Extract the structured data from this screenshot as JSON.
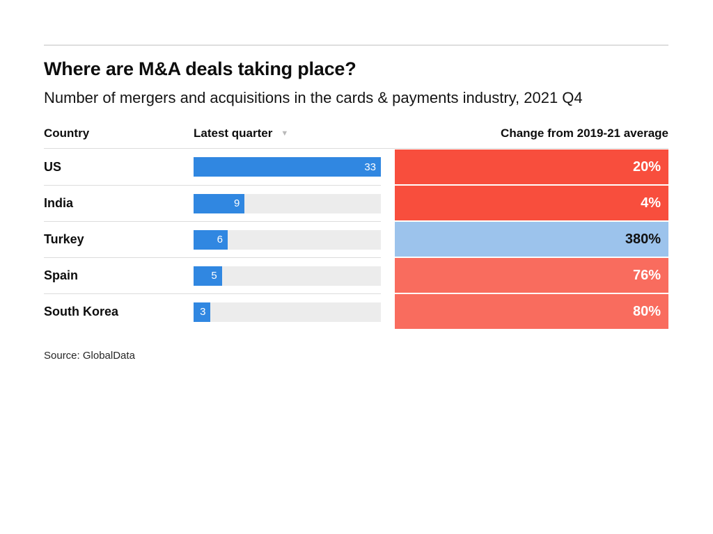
{
  "header": {
    "title": "Where are M&A deals taking place?",
    "subtitle": "Number of mergers and acquisitions in the cards & payments industry, 2021 Q4"
  },
  "table": {
    "columns": {
      "country": "Country",
      "latest_quarter": "Latest quarter",
      "change": "Change from 2019-21 average"
    },
    "sort_icon": "▼",
    "rows": [
      {
        "country": "US",
        "latest_quarter": 33,
        "change": "20%",
        "change_bg": "#f84e3d",
        "change_text": "#ffffff"
      },
      {
        "country": "India",
        "latest_quarter": 9,
        "change": "4%",
        "change_bg": "#f84e3d",
        "change_text": "#ffffff"
      },
      {
        "country": "Turkey",
        "latest_quarter": 6,
        "change": "380%",
        "change_bg": "#9cc3ec",
        "change_text": "#111111"
      },
      {
        "country": "Spain",
        "latest_quarter": 5,
        "change": "76%",
        "change_bg": "#f96c5e",
        "change_text": "#ffffff"
      },
      {
        "country": "South Korea",
        "latest_quarter": 3,
        "change": "80%",
        "change_bg": "#f96c5e",
        "change_text": "#ffffff"
      }
    ]
  },
  "colors": {
    "bar_fill": "#3087e1",
    "bar_track": "#ececec"
  },
  "source": "Source: GlobalData",
  "chart_data": {
    "type": "bar",
    "orientation": "horizontal",
    "categories": [
      "US",
      "India",
      "Turkey",
      "Spain",
      "South Korea"
    ],
    "series": [
      {
        "name": "Latest quarter",
        "values": [
          33,
          9,
          6,
          5,
          3
        ]
      },
      {
        "name": "Change from 2019-21 average (%)",
        "values": [
          20,
          4,
          380,
          76,
          80
        ]
      }
    ],
    "title": "Where are M&A deals taking place?",
    "subtitle": "Number of mergers and acquisitions in the cards & payments industry, 2021 Q4",
    "bar_max": 33,
    "source": "Source: GlobalData",
    "grid": false,
    "legend": false
  }
}
